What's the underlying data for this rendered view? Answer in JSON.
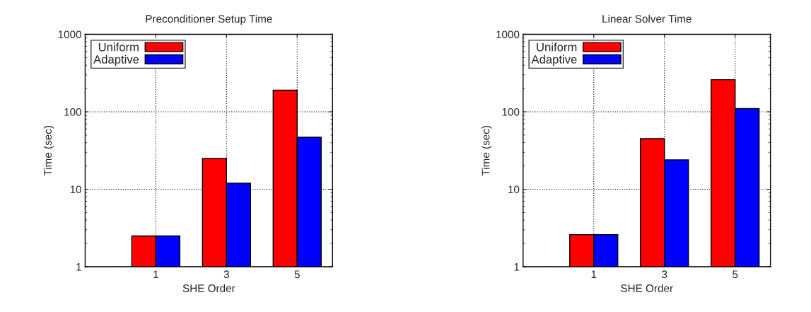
{
  "chart_data": [
    {
      "type": "bar",
      "title": "Preconditioner Setup Time",
      "xlabel": "SHE Order",
      "ylabel": "Time (sec)",
      "categories": [
        "1",
        "3",
        "5"
      ],
      "series": [
        {
          "name": "Uniform",
          "color": "#ff0000",
          "values": [
            2.5,
            25,
            190
          ]
        },
        {
          "name": "Adaptive",
          "color": "#0000ff",
          "values": [
            2.5,
            12,
            47
          ]
        }
      ],
      "log": "y",
      "ylim": [
        1,
        1000
      ],
      "yticks": [
        1,
        10,
        100,
        1000
      ],
      "grid": true,
      "legend": "top left"
    },
    {
      "type": "bar",
      "title": "Linear Solver Time",
      "xlabel": "SHE Order",
      "ylabel": "Time (sec)",
      "categories": [
        "1",
        "3",
        "5"
      ],
      "series": [
        {
          "name": "Uniform",
          "color": "#ff0000",
          "values": [
            2.6,
            45,
            260
          ]
        },
        {
          "name": "Adaptive",
          "color": "#0000ff",
          "values": [
            2.6,
            24,
            110
          ]
        }
      ],
      "log": "y",
      "ylim": [
        1,
        1000
      ],
      "yticks": [
        1,
        10,
        100,
        1000
      ],
      "grid": true,
      "legend": "top left"
    }
  ]
}
